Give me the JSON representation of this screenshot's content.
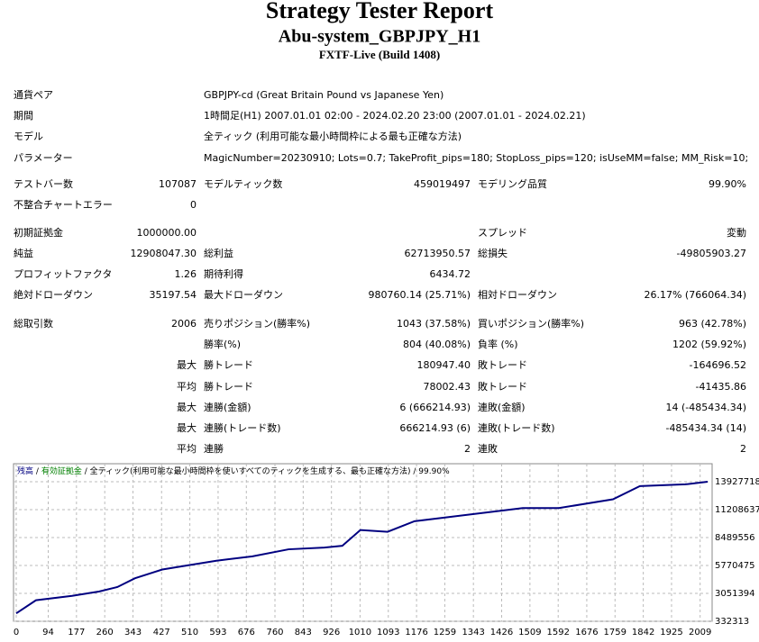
{
  "header": {
    "title": "Strategy Tester Report",
    "subtitle": "Abu-system_GBPJPY_H1",
    "build": "FXTF-Live (Build 1408)"
  },
  "rows": [
    {
      "left": {
        "label": "通貨ペア",
        "note": "GBPJPY-cd (Great Britain Pound vs Japanese Yen)"
      }
    },
    {
      "left": {
        "label": "期間",
        "note": "1時間足(H1) 2007.01.01 02:00 - 2024.02.20 23:00 (2007.01.01 - 2024.02.21)"
      }
    },
    {
      "left": {
        "label": "モデル",
        "note": "全ティック (利用可能な最小時間枠による最も正確な方法)"
      }
    },
    {
      "left": {
        "label": "パラメーター",
        "note": "MagicNumber=20230910; Lots=0.7; TakeProfit_pips=180; StopLoss_pips=120; isUseMM=false; MM_Risk=10;"
      }
    },
    {
      "left": {
        "label": "テストバー数",
        "value": "107087"
      },
      "middle": {
        "label": "モデルティック数",
        "value": "459019497"
      },
      "right": {
        "label": "モデリング品質",
        "value": "99.90%"
      }
    },
    {
      "left": {
        "label": "不整合チャートエラー",
        "value": "0"
      }
    },
    {
      "left": {
        "label": "初期証拠金",
        "value": "1000000.00"
      },
      "right": {
        "label": "スプレッド",
        "value": "変動"
      }
    },
    {
      "left": {
        "label": "純益",
        "value": "12908047.30"
      },
      "middle": {
        "label": "総利益",
        "value": "62713950.57"
      },
      "right": {
        "label": "総損失",
        "value": "-49805903.27"
      }
    },
    {
      "left": {
        "label": "プロフィットファクタ",
        "value": "1.26"
      },
      "middle": {
        "label": "期待利得",
        "value": "6434.72"
      }
    },
    {
      "left": {
        "label": "絶対ドローダウン",
        "value": "35197.54"
      },
      "middle": {
        "label": "最大ドローダウン",
        "value": "980760.14 (25.71%)"
      },
      "right": {
        "label": "相対ドローダウン",
        "value": "26.17% (766064.34)"
      }
    },
    {
      "left": {
        "label": "総取引数",
        "value": "2006"
      },
      "middle": {
        "label": "売りポジション(勝率%)",
        "value": "1043 (37.58%)"
      },
      "right": {
        "label": "買いポジション(勝率%)",
        "value": "963 (42.78%)"
      }
    },
    {
      "middle": {
        "label": "勝率(%)",
        "value": "804 (40.08%)"
      },
      "right": {
        "label": "負率 (%)",
        "value": "1202 (59.92%)"
      }
    },
    {
      "left": {
        "value": "最大"
      },
      "middle": {
        "label": "勝トレード",
        "value": "180947.40"
      },
      "right": {
        "label": "敗トレード",
        "value": "-164696.52"
      }
    },
    {
      "left": {
        "value": "平均"
      },
      "middle": {
        "label": "勝トレード",
        "value": "78002.43"
      },
      "right": {
        "label": "敗トレード",
        "value": "-41435.86"
      }
    },
    {
      "left": {
        "value": "最大"
      },
      "middle": {
        "label": "連勝(金額)",
        "value": "6 (666214.93)"
      },
      "right": {
        "label": "連敗(金額)",
        "value": "14 (-485434.34)"
      }
    },
    {
      "left": {
        "value": "最大"
      },
      "middle": {
        "label": "連勝(トレード数)",
        "value": "666214.93 (6)"
      },
      "right": {
        "label": "連敗(トレード数)",
        "value": "-485434.34 (14)"
      }
    },
    {
      "left": {
        "value": "平均"
      },
      "middle": {
        "label": "連勝",
        "value": "2"
      },
      "right": {
        "label": "連敗",
        "value": "2"
      }
    }
  ],
  "chart_data": {
    "type": "line",
    "series": [
      {
        "name": "残高",
        "color": "#000080",
        "values": [
          1102000,
          2384000,
          2812000,
          3240000,
          3667000,
          4522000,
          5377000,
          5805000,
          6232000,
          6660000,
          7344000,
          7515000,
          7686000,
          9225000,
          9054000,
          10080000,
          10508000,
          10935000,
          11363000,
          11363000,
          12218000,
          13500000,
          13671000,
          13928000
        ]
      },
      {
        "name": "有効証拠金",
        "color": "#008000"
      }
    ],
    "separator": "/",
    "note": "/ 全ティック(利用可能な最小時間枠を使いすべてのティックを生成する、最も正確な方法) / 99.90%",
    "x": [
      0,
      58,
      164,
      244,
      297,
      349,
      429,
      508,
      588,
      694,
      800,
      905,
      958,
      1011,
      1091,
      1170,
      1276,
      1382,
      1488,
      1594,
      1753,
      1832,
      1965,
      2031
    ],
    "xlim": [
      0,
      2031
    ],
    "xticks": [
      0,
      94,
      177,
      260,
      343,
      427,
      510,
      593,
      676,
      760,
      843,
      926,
      1010,
      1093,
      1176,
      1259,
      1343,
      1426,
      1509,
      1592,
      1676,
      1759,
      1842,
      1925,
      2009
    ],
    "ylim": [
      332313,
      13927718
    ],
    "yticks": [
      332313,
      3051394,
      5770475,
      8489556,
      11208637,
      13927718
    ],
    "grid": true
  }
}
